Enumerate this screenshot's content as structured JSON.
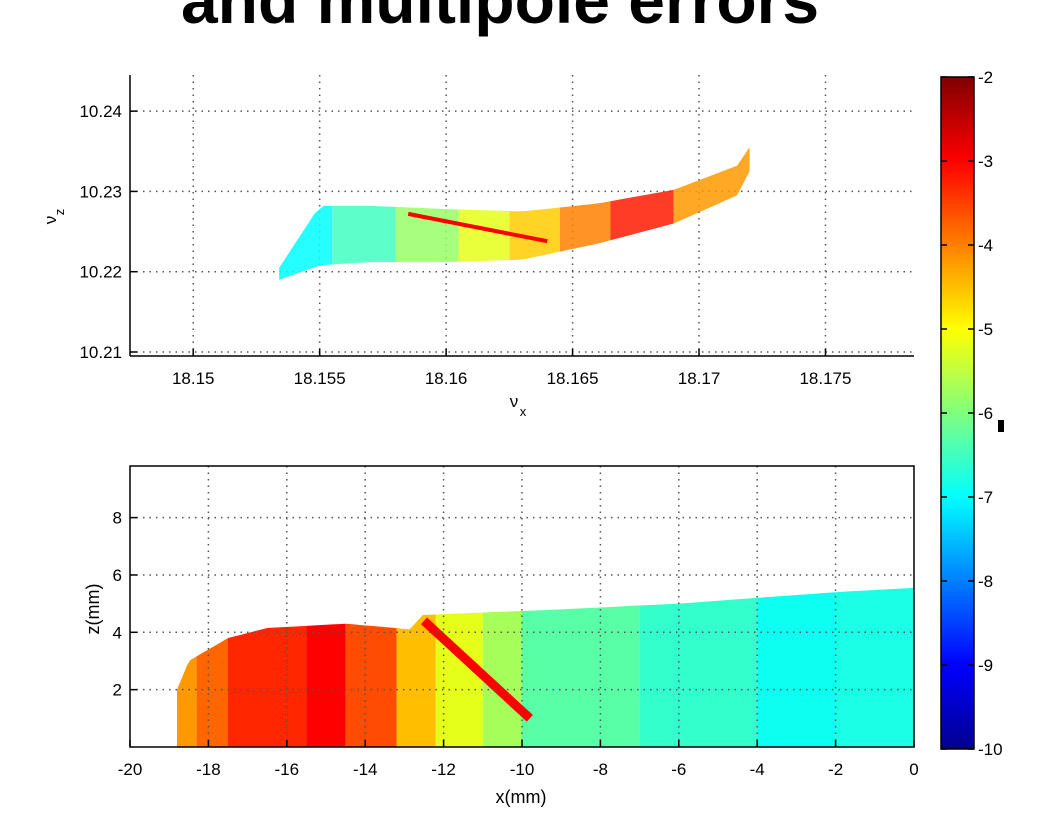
{
  "slide": {
    "title": "and multipole errors"
  },
  "colors": {
    "axis": "#000000",
    "grid": "#555555",
    "background": "#ffffff"
  },
  "chart_data": [
    {
      "type": "scatter",
      "title": "",
      "xlabel": "ν_x",
      "ylabel": "ν_z",
      "xlabel_main": "ν",
      "xlabel_sub": "x",
      "ylabel_main": "ν",
      "ylabel_sub": "z",
      "xlim": [
        18.1475,
        18.1785
      ],
      "ylim": [
        10.2095,
        10.2445
      ],
      "xticks": [
        18.15,
        18.155,
        18.16,
        18.165,
        18.17,
        18.175
      ],
      "xtick_labels": [
        "18.15",
        "18.155",
        "18.16",
        "18.165",
        "18.17",
        "18.175"
      ],
      "yticks": [
        10.21,
        10.22,
        10.23,
        10.24
      ],
      "ytick_labels": [
        "10.21",
        "10.22",
        "10.23",
        "10.24"
      ],
      "grid": true,
      "color_value_range": [
        -10,
        -2
      ],
      "footprint": {
        "x": [
          18.1534,
          18.155,
          18.157,
          18.16,
          18.163,
          18.166,
          18.169,
          18.1715,
          18.172
        ],
        "upper": [
          10.2205,
          10.2282,
          10.2282,
          10.2278,
          10.2275,
          10.2285,
          10.2302,
          10.2332,
          10.2355
        ],
        "lower": [
          10.219,
          10.2208,
          10.2212,
          10.2212,
          10.2215,
          10.2235,
          10.226,
          10.2295,
          10.2325
        ]
      },
      "color_bands": [
        {
          "x": [
            18.1534,
            18.1555
          ],
          "value": -7.0
        },
        {
          "x": [
            18.1555,
            18.158
          ],
          "value": -6.5
        },
        {
          "x": [
            18.158,
            18.1605
          ],
          "value": -5.8
        },
        {
          "x": [
            18.1605,
            18.1625
          ],
          "value": -5.2
        },
        {
          "x": [
            18.1625,
            18.1645
          ],
          "value": -4.6
        },
        {
          "x": [
            18.1645,
            18.1665
          ],
          "value": -4.0
        },
        {
          "x": [
            18.1665,
            18.169
          ],
          "value": -3.2
        },
        {
          "x": [
            18.169,
            18.172
          ],
          "value": -4.2
        }
      ],
      "resonance_line": {
        "x": [
          18.1585,
          18.164
        ],
        "y": [
          10.2272,
          10.2238
        ],
        "value": -3.0
      }
    },
    {
      "type": "heatmap",
      "title": "",
      "xlabel": "x(mm)",
      "ylabel": "z(mm)",
      "xlim": [
        -20,
        0
      ],
      "ylim": [
        0,
        9.8
      ],
      "xticks": [
        -20,
        -18,
        -16,
        -14,
        -12,
        -10,
        -8,
        -6,
        -4,
        -2,
        0
      ],
      "xtick_labels": [
        "-20",
        "-18",
        "-16",
        "-14",
        "-12",
        "-10",
        "-8",
        "-6",
        "-4",
        "-2",
        "0"
      ],
      "yticks": [
        2,
        4,
        6,
        8
      ],
      "ytick_labels": [
        "2",
        "4",
        "6",
        "8"
      ],
      "grid": true,
      "color_value_range": [
        -10,
        -2
      ],
      "envelope": {
        "x": [
          -18.8,
          -18.5,
          -17.5,
          -16.5,
          -14.5,
          -12.8,
          -12.6,
          -9,
          -6,
          -4,
          -2,
          0
        ],
        "top": [
          2.0,
          3.0,
          3.8,
          4.15,
          4.3,
          4.1,
          4.6,
          4.8,
          5.0,
          5.2,
          5.4,
          5.55
        ]
      },
      "color_bands": [
        {
          "x": [
            -18.8,
            -18.3
          ],
          "value": -4.2
        },
        {
          "x": [
            -18.3,
            -17.5
          ],
          "value": -3.8
        },
        {
          "x": [
            -17.5,
            -15.5
          ],
          "value": -3.3
        },
        {
          "x": [
            -15.5,
            -14.5
          ],
          "value": -3.0
        },
        {
          "x": [
            -14.5,
            -13.2
          ],
          "value": -3.6
        },
        {
          "x": [
            -13.2,
            -12.2
          ],
          "value": -4.5
        },
        {
          "x": [
            -12.2,
            -11.0
          ],
          "value": -5.2
        },
        {
          "x": [
            -11.0,
            -10.0
          ],
          "value": -5.7
        },
        {
          "x": [
            -10.0,
            -7.0
          ],
          "value": -6.3
        },
        {
          "x": [
            -7.0,
            -4.0
          ],
          "value": -6.6
        },
        {
          "x": [
            -4.0,
            -2.0
          ],
          "value": -6.9
        },
        {
          "x": [
            -2.0,
            0.0
          ],
          "value": -6.8
        }
      ],
      "resonance_line": {
        "x": [
          -12.5,
          -9.8
        ],
        "y": [
          4.4,
          1.0
        ],
        "value": -3.0
      }
    }
  ],
  "colorbar": {
    "range": [
      -10,
      -2
    ],
    "ticks": [
      -2,
      -3,
      -4,
      -5,
      -6,
      -7,
      -8,
      -9,
      -10
    ],
    "tick_labels": [
      "-2",
      "-3",
      "-4",
      "-5",
      "-6",
      "-7",
      "-8",
      "-9",
      "-10"
    ]
  }
}
